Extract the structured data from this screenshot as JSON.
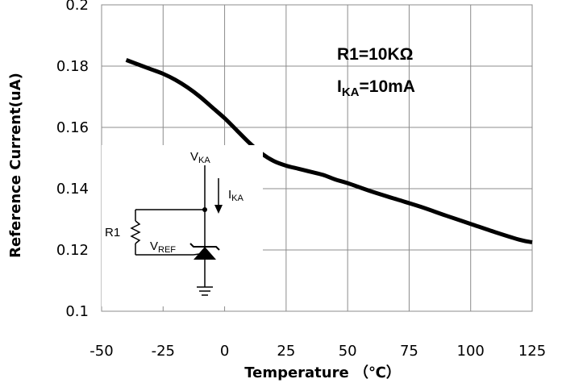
{
  "chart_data": {
    "type": "line",
    "title": "",
    "xlabel": "Temperature （℃）",
    "ylabel": "Reference Current(uA)",
    "xlim": [
      -50,
      125
    ],
    "ylim": [
      0.1,
      0.2
    ],
    "x_ticks": [
      "-50",
      "-25",
      "0",
      "25",
      "50",
      "75",
      "100",
      "125"
    ],
    "y_ticks": [
      "0.1",
      "0.12",
      "0.14",
      "0.16",
      "0.18",
      "0.2"
    ],
    "grid": true,
    "series": [
      {
        "x": [
          -40,
          -35,
          -30,
          -25,
          -20,
          -15,
          -10,
          -5,
          0,
          5,
          10,
          15,
          20,
          25,
          30,
          35,
          40,
          45,
          50,
          60,
          70,
          80,
          90,
          100,
          110,
          120,
          125
        ],
        "y": [
          0.182,
          0.1805,
          0.179,
          0.1775,
          0.1755,
          0.173,
          0.17,
          0.1665,
          0.163,
          0.159,
          0.155,
          0.1515,
          0.149,
          0.1475,
          0.1465,
          0.1455,
          0.1445,
          0.143,
          0.1418,
          0.139,
          0.1365,
          0.134,
          0.1312,
          0.1285,
          0.1258,
          0.1233,
          0.1225
        ]
      }
    ],
    "annotations": {
      "r1_text": "R1=10KΩ",
      "ika_main": "I",
      "ika_sub": "KA",
      "ika_value": "=10mA"
    },
    "circuit": {
      "vka_main": "V",
      "vka_sub": "KA",
      "ika_main": "I",
      "ika_sub": "KA",
      "r1_label": "R1",
      "vref_main": "V",
      "vref_sub": "REF"
    }
  }
}
